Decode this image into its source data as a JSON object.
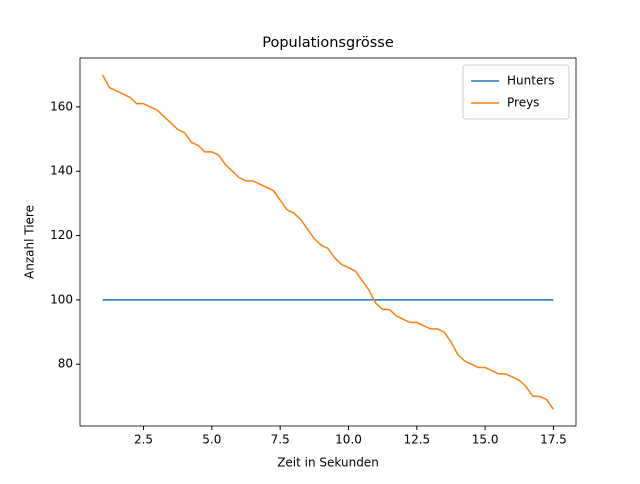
{
  "chart_data": {
    "type": "line",
    "title": "Populationsgrösse",
    "xlabel": "Zeit in Sekunden",
    "ylabel": "Anzahl Tiere",
    "x": [
      1,
      1.25,
      1.5,
      1.75,
      2,
      2.25,
      2.5,
      2.75,
      3,
      3.25,
      3.5,
      3.75,
      4,
      4.25,
      4.5,
      4.75,
      5,
      5.25,
      5.5,
      5.75,
      6,
      6.25,
      6.5,
      6.75,
      7,
      7.25,
      7.5,
      7.75,
      8,
      8.25,
      8.5,
      8.75,
      9,
      9.25,
      9.5,
      9.75,
      10,
      10.25,
      10.5,
      10.75,
      11,
      11.25,
      11.5,
      11.75,
      12,
      12.25,
      12.5,
      12.75,
      13,
      13.25,
      13.5,
      13.75,
      14,
      14.25,
      14.5,
      14.75,
      15,
      15.25,
      15.5,
      15.75,
      16,
      16.25,
      16.5,
      16.75,
      17,
      17.25,
      17.5
    ],
    "series": [
      {
        "name": "Hunters",
        "color": "#1f77b4",
        "values": [
          100,
          100,
          100,
          100,
          100,
          100,
          100,
          100,
          100,
          100,
          100,
          100,
          100,
          100,
          100,
          100,
          100,
          100,
          100,
          100,
          100,
          100,
          100,
          100,
          100,
          100,
          100,
          100,
          100,
          100,
          100,
          100,
          100,
          100,
          100,
          100,
          100,
          100,
          100,
          100,
          100,
          100,
          100,
          100,
          100,
          100,
          100,
          100,
          100,
          100,
          100,
          100,
          100,
          100,
          100,
          100,
          100,
          100,
          100,
          100,
          100,
          100,
          100,
          100,
          100,
          100,
          100
        ]
      },
      {
        "name": "Preys",
        "color": "#ff7f0e",
        "values": [
          170,
          166,
          165,
          164,
          163,
          161,
          161,
          160,
          159,
          157,
          155,
          153,
          152,
          149,
          148,
          146,
          146,
          145,
          142,
          140,
          138,
          137,
          137,
          136,
          135,
          134,
          131,
          128,
          127,
          125,
          122,
          119,
          117,
          116,
          113,
          111,
          110,
          109,
          106,
          103,
          99,
          97,
          97,
          95,
          94,
          93,
          93,
          92,
          91,
          91,
          90,
          87,
          83,
          81,
          80,
          79,
          79,
          78,
          77,
          77,
          76,
          75,
          73,
          70,
          70,
          69,
          66
        ]
      }
    ],
    "xlim": [
      0.175,
      18.325
    ],
    "xticks": [
      2.5,
      {
        "value": 5,
        "label": "5.0"
      },
      7.5,
      {
        "value": 10,
        "label": "10.0"
      },
      12.5,
      {
        "value": 15,
        "label": "15.0"
      },
      17.5
    ],
    "ylim": [
      60.8,
      175.2
    ],
    "yticks": [
      80,
      100,
      120,
      140,
      160
    ],
    "legend": "upper right"
  }
}
